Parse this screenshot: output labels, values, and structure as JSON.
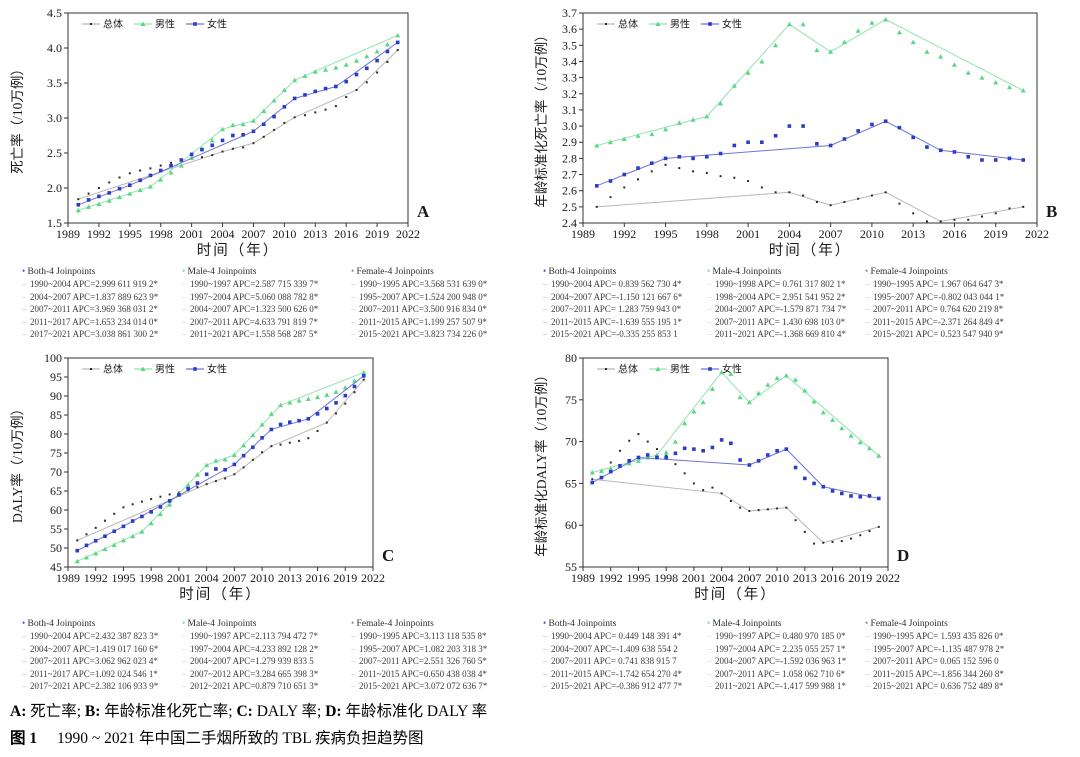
{
  "figure": {
    "caption": {
      "line1_parts": [
        {
          "text": "A:",
          "bold": true
        },
        {
          "text": " 死亡率; ",
          "bold": false
        },
        {
          "text": "B:",
          "bold": true
        },
        {
          "text": " 年龄标准化死亡率; ",
          "bold": false
        },
        {
          "text": "C:",
          "bold": true
        },
        {
          "text": " DALY 率; ",
          "bold": false
        },
        {
          "text": "D:",
          "bold": true
        },
        {
          "text": " 年龄标准化 DALY 率",
          "bold": false
        }
      ],
      "fig_label": "图 1",
      "title": "1990 ~ 2021 年中国二手烟所致的 TBL 疾病负担趋势图"
    }
  },
  "x_axis": {
    "title": "时间（年）",
    "ticks": [
      "1989",
      "1992",
      "1995",
      "1998",
      "2001",
      "2004",
      "2007",
      "2010",
      "2013",
      "2016",
      "2019",
      "2022"
    ],
    "range": [
      1989,
      2022
    ]
  },
  "years": [
    1990,
    1991,
    1992,
    1993,
    1994,
    1995,
    1996,
    1997,
    1998,
    1999,
    2000,
    2001,
    2002,
    2003,
    2004,
    2005,
    2006,
    2007,
    2008,
    2009,
    2010,
    2011,
    2012,
    2013,
    2014,
    2015,
    2016,
    2017,
    2018,
    2019,
    2020,
    2021
  ],
  "legend_labels": {
    "total": "总体",
    "male": "男性",
    "female": "女性"
  },
  "colors": {
    "total_line": "#b8b8b8",
    "total_marker": "#2a2a2a",
    "male_line": "#90e5ae",
    "male_marker": "#58d786",
    "female_line": "#6d74d8",
    "female_marker": "#2b3cc9",
    "axis": "#333333",
    "jp_dash_both": "#a9b6de",
    "jp_dash_male": "#b4e9c7",
    "jp_dash_female": "#c2c2c2",
    "jp_bullet_both": "#3d55cc",
    "jp_bullet_male": "#7fd8a0",
    "jp_bullet_female": "#8c8c8c"
  },
  "chart_data": [
    {
      "id": "A",
      "type": "line",
      "y_title": "死亡率（/10万例）",
      "ylim": [
        1.5,
        4.5
      ],
      "yticks": [
        "1.5",
        "2.0",
        "2.5",
        "3.0",
        "3.5",
        "4.0",
        "4.5"
      ],
      "series": [
        {
          "key": "total",
          "name": "总体",
          "values": [
            1.84,
            1.92,
            2.0,
            2.08,
            2.15,
            2.21,
            2.25,
            2.28,
            2.32,
            2.36,
            2.4,
            2.43,
            2.44,
            2.47,
            2.52,
            2.56,
            2.58,
            2.64,
            2.73,
            2.83,
            2.93,
            3.01,
            3.04,
            3.08,
            3.12,
            3.17,
            3.3,
            3.4,
            3.51,
            3.65,
            3.8,
            3.97
          ]
        },
        {
          "key": "male",
          "name": "男性",
          "values": [
            1.68,
            1.73,
            1.77,
            1.82,
            1.87,
            1.92,
            1.97,
            2.02,
            2.12,
            2.22,
            2.32,
            2.43,
            2.55,
            2.68,
            2.84,
            2.9,
            2.91,
            2.96,
            3.1,
            3.25,
            3.4,
            3.54,
            3.6,
            3.66,
            3.69,
            3.72,
            3.76,
            3.82,
            3.88,
            3.95,
            4.05,
            4.18
          ]
        },
        {
          "key": "female",
          "name": "女性",
          "values": [
            1.76,
            1.83,
            1.88,
            1.93,
            1.99,
            2.04,
            2.11,
            2.18,
            2.25,
            2.32,
            2.4,
            2.48,
            2.55,
            2.61,
            2.68,
            2.75,
            2.76,
            2.81,
            2.91,
            3.02,
            3.16,
            3.28,
            3.33,
            3.38,
            3.42,
            3.45,
            3.52,
            3.62,
            3.71,
            3.82,
            3.95,
            4.08
          ]
        }
      ],
      "joinpoints": [
        {
          "key": "both",
          "title": "Both-4 Joinpoints",
          "lines": [
            "1990~2004 APC=2.999 611 919 2*",
            "2004~2007 APC=1.837 889 623 9*",
            "2007~2011 APC=3.969 368 031 2*",
            "2011~2017 APC=1.653 234 014 0*",
            "2017~2021 APC=3.038 861 300 2*"
          ]
        },
        {
          "key": "male",
          "title": "Male-4 Joinpoints",
          "lines": [
            "1990~1997 APC=2.587 715 339 7*",
            "1997~2004 APC=5.060 088 782 8*",
            "2004~2007 APC=1.323 500 626 0*",
            "2007~2011 APC=4.633 791 819 7*",
            "2011~2021 APC=1.558 568 287 5*"
          ]
        },
        {
          "key": "female",
          "title": "Female-4 Joinpoints",
          "lines": [
            "1990~1995 APC=3.568 531 639 0*",
            "1995~2007 APC=1.524 200 948 0*",
            "2007~2011 APC=3.500 916 834 0*",
            "2011~2015 APC=1.199 257 507 9*",
            "2015~2021 APC=3.823 734 226 0*"
          ]
        }
      ]
    },
    {
      "id": "B",
      "type": "line",
      "y_title": "年龄标准化死亡率（/10万例）",
      "ylim": [
        2.4,
        3.7
      ],
      "yticks": [
        "2.4",
        "2.5",
        "2.6",
        "2.7",
        "2.8",
        "2.9",
        "3.0",
        "3.1",
        "3.2",
        "3.3",
        "3.4",
        "3.5",
        "3.6",
        "3.7"
      ],
      "series": [
        {
          "key": "total",
          "name": "总体",
          "values": [
            2.5,
            2.56,
            2.62,
            2.67,
            2.72,
            2.76,
            2.74,
            2.72,
            2.71,
            2.69,
            2.68,
            2.66,
            2.62,
            2.59,
            2.59,
            2.57,
            2.53,
            2.51,
            2.53,
            2.55,
            2.57,
            2.59,
            2.52,
            2.46,
            2.41,
            2.41,
            2.42,
            2.42,
            2.44,
            2.46,
            2.49,
            2.5
          ]
        },
        {
          "key": "male",
          "name": "男性",
          "values": [
            2.88,
            2.9,
            2.92,
            2.94,
            2.95,
            2.98,
            3.02,
            3.04,
            3.06,
            3.14,
            3.25,
            3.33,
            3.4,
            3.5,
            3.63,
            3.63,
            3.47,
            3.46,
            3.52,
            3.59,
            3.64,
            3.66,
            3.58,
            3.52,
            3.46,
            3.43,
            3.38,
            3.33,
            3.3,
            3.27,
            3.24,
            3.22
          ]
        },
        {
          "key": "female",
          "name": "女性",
          "values": [
            2.63,
            2.66,
            2.7,
            2.74,
            2.77,
            2.8,
            2.81,
            2.8,
            2.81,
            2.83,
            2.88,
            2.9,
            2.9,
            2.94,
            3.0,
            3.0,
            2.89,
            2.88,
            2.92,
            2.97,
            3.01,
            3.03,
            2.99,
            2.93,
            2.87,
            2.85,
            2.84,
            2.81,
            2.79,
            2.79,
            2.8,
            2.79
          ]
        }
      ],
      "joinpoints": [
        {
          "key": "both",
          "title": "Both-4 Joinpoints",
          "lines": [
            "1990~2004 APC= 0.839 562 730 4*",
            "2004~2007 APC=-1.150 121 667 6*",
            "2007~2011 APC= 1.283 759 943 0*",
            "2011~2015 APC=-1.639 555 195 1*",
            "2015~2021 APC=-0.335 255 853 1"
          ]
        },
        {
          "key": "male",
          "title": "Male-4 Joinpoints",
          "lines": [
            "1990~1998 APC= 0.761 317 802 1*",
            "1998~2004 APC= 2.951 541 952 2*",
            "2004~2007 APC=-1.579 871 734 7*",
            "2007~2011 APC= 1.430 698 103 0*",
            "2011~2021 APC=-1.368 669 810 4*"
          ]
        },
        {
          "key": "female",
          "title": "Female-4 Joinpoints",
          "lines": [
            "1990~1995 APC= 1.967 064 647 3*",
            "1995~2007 APC=-0.802 043 044 1*",
            "2007~2011 APC= 0.764 620 219 8*",
            "2011~2015 APC=-2.371 264 849 4*",
            "2015~2021 APC= 0.523 547 940 9*"
          ]
        }
      ]
    },
    {
      "id": "C",
      "type": "line",
      "y_title": "DALY率（/10万例）",
      "ylim": [
        45,
        100
      ],
      "yticks": [
        "45",
        "50",
        "55",
        "60",
        "65",
        "70",
        "75",
        "80",
        "85",
        "90",
        "95",
        "100"
      ],
      "series": [
        {
          "key": "total",
          "name": "总体",
          "values": [
            52.0,
            53.6,
            55.3,
            57.2,
            59.0,
            60.7,
            61.5,
            62.2,
            62.9,
            63.5,
            64.1,
            64.6,
            65.2,
            66.0,
            66.8,
            67.6,
            68.3,
            69.4,
            71.2,
            73.2,
            75.2,
            76.8,
            77.2,
            77.7,
            78.2,
            78.9,
            80.8,
            83.0,
            85.4,
            88.0,
            91.0,
            94.3
          ]
        },
        {
          "key": "male",
          "name": "男性",
          "values": [
            46.5,
            47.5,
            48.6,
            49.7,
            50.8,
            52.0,
            53.1,
            54.3,
            56.5,
            58.9,
            61.4,
            64.0,
            66.6,
            69.3,
            71.8,
            73.0,
            73.3,
            74.5,
            77.0,
            79.7,
            82.5,
            85.3,
            87.6,
            88.3,
            88.8,
            89.2,
            89.7,
            90.3,
            91.1,
            92.2,
            94.0,
            96.2
          ]
        },
        {
          "key": "female",
          "name": "女性",
          "values": [
            49.3,
            50.7,
            51.9,
            53.1,
            54.4,
            55.7,
            57.1,
            58.3,
            59.5,
            60.8,
            62.4,
            64.0,
            65.6,
            67.1,
            69.4,
            70.8,
            70.6,
            72.0,
            74.3,
            76.5,
            79.0,
            81.2,
            82.5,
            83.1,
            83.5,
            84.0,
            85.3,
            86.7,
            88.2,
            90.1,
            92.5,
            95.3
          ]
        }
      ],
      "joinpoints": [
        {
          "key": "both",
          "title": "Both-4 Joinpoints",
          "lines": [
            "1990~2004 APC=2.432 387 823 3*",
            "2004~2007 APC=1.419 017 160 6*",
            "2007~2011 APC=3.062 962 023 4*",
            "2011~2017 APC=1.092 024 546 1*",
            "2017~2021 APC=2.382 106 933 9*"
          ]
        },
        {
          "key": "male",
          "title": "Male-4 Joinpoints",
          "lines": [
            "1990~1997 APC=2.113 794 472 7*",
            "1997~2004 APC=4.233 892 128 2*",
            "2004~2007 APC=1.279 939 833 5",
            "2007~2012 APC=3.284 665 398 3*",
            "2012~2021 APC=0.879 710 651 3*"
          ]
        },
        {
          "key": "female",
          "title": "Female-4 Joinpoints",
          "lines": [
            "1990~1995 APC=3.113 118 535 8*",
            "1995~2007 APC=1.082 203 318 3*",
            "2007~2011 APC=2.551 326 760 5*",
            "2011~2015 APC=0.650 438 038 4*",
            "2015~2021 APC=3.072 072 636 7*"
          ]
        }
      ]
    },
    {
      "id": "D",
      "type": "line",
      "y_title": "年龄标准化DALY率（/10万例）",
      "ylim": [
        55,
        80
      ],
      "yticks": [
        "55",
        "60",
        "65",
        "70",
        "75",
        "80"
      ],
      "series": [
        {
          "key": "total",
          "name": "总体",
          "values": [
            65.5,
            66.4,
            67.5,
            68.9,
            70.1,
            70.9,
            70.0,
            69.1,
            68.3,
            67.3,
            66.2,
            65.0,
            64.2,
            64.5,
            63.8,
            62.9,
            62.1,
            61.7,
            61.8,
            61.9,
            62.0,
            62.1,
            60.6,
            59.2,
            57.8,
            57.9,
            58.0,
            58.1,
            58.4,
            58.8,
            59.3,
            59.8
          ]
        },
        {
          "key": "male",
          "name": "男性",
          "values": [
            66.3,
            66.5,
            66.8,
            67.1,
            67.4,
            67.7,
            68.1,
            68.4,
            68.7,
            70.0,
            72.2,
            73.6,
            74.7,
            76.3,
            78.3,
            78.1,
            75.3,
            74.7,
            75.8,
            76.8,
            77.6,
            77.9,
            77.4,
            76.1,
            74.8,
            73.5,
            72.6,
            71.6,
            70.7,
            69.9,
            69.2,
            68.3
          ]
        },
        {
          "key": "female",
          "name": "女性",
          "values": [
            65.1,
            65.7,
            66.4,
            67.1,
            67.7,
            68.1,
            68.4,
            68.1,
            68.1,
            68.6,
            69.2,
            69.1,
            68.9,
            69.3,
            70.2,
            69.8,
            67.8,
            67.2,
            67.7,
            68.4,
            68.9,
            69.1,
            66.9,
            65.6,
            65.0,
            64.6,
            64.1,
            63.8,
            63.5,
            63.4,
            63.5,
            63.2
          ]
        }
      ],
      "joinpoints": [
        {
          "key": "both",
          "title": "Both-4 Joinpoints",
          "lines": [
            "1990~2004 APC= 0.449 148 391 4*",
            "2004~2007 APC=-1.409 638 554 2",
            "2007~2011 APC= 0.741 838 915 7",
            "2011~2015 APC=-1.742 654 270 4*",
            "2015~2021 APC=-0.386 912 477 7*"
          ]
        },
        {
          "key": "male",
          "title": "Male-4 Joinpoints",
          "lines": [
            "1990~1997 APC= 0.480 970 185 0*",
            "1997~2004 APC= 2.235 055 257 1*",
            "2004~2007 APC=-1.592 036 963 1*",
            "2007~2011 APC= 1.058 062 710 6*",
            "2011~2021 APC=-1.417 599 988 1*"
          ]
        },
        {
          "key": "female",
          "title": "Female-4 Joinpoints",
          "lines": [
            "1990~1995 APC= 1.593 435 826 0*",
            "1995~2007 APC=-1.135 487 978 2*",
            "2007~2011 APC= 0.065 152 596 0",
            "2011~2015 APC=-1.856 344 260 8*",
            "2015~2021 APC= 0.636 752 489 8*"
          ]
        }
      ]
    }
  ]
}
